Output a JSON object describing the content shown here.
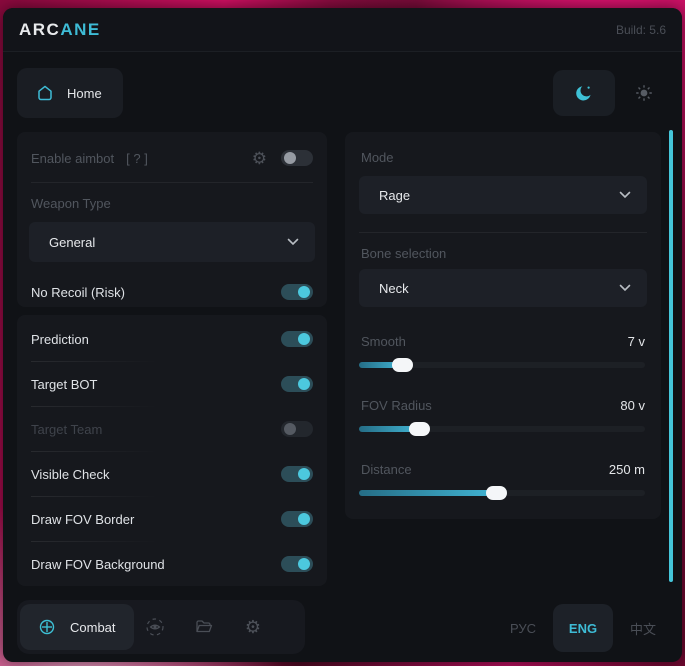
{
  "titlebar": {
    "brand_primary": "ARC",
    "brand_accent": "ANE",
    "build": "Build: 5.6"
  },
  "nav": {
    "home_label": "Home"
  },
  "left_panel": {
    "aimbot": {
      "label": "Enable aimbot",
      "hint": "[ ? ]",
      "enabled": false
    },
    "weapon_type": {
      "label": "Weapon Type",
      "value": "General"
    },
    "no_recoil": {
      "label": "No Recoil (Risk)",
      "enabled": true
    },
    "toggles": [
      {
        "label": "Prediction",
        "state": "on"
      },
      {
        "label": "Target BOT",
        "state": "on"
      },
      {
        "label": "Target Team",
        "state": "disabled"
      },
      {
        "label": "Visible Check",
        "state": "on"
      },
      {
        "label": "Draw FOV Border",
        "state": "on"
      },
      {
        "label": "Draw FOV Background",
        "state": "on"
      }
    ]
  },
  "right_panel": {
    "mode": {
      "label": "Mode",
      "value": "Rage"
    },
    "bone": {
      "label": "Bone selection",
      "value": "Neck"
    },
    "sliders": [
      {
        "label": "Smooth",
        "value": "7 v",
        "percent": 15
      },
      {
        "label": "FOV Radius",
        "value": "80 v",
        "percent": 21
      },
      {
        "label": "Distance",
        "value": "250 m",
        "percent": 48
      }
    ]
  },
  "bottom_bar": {
    "combat_label": "Combat",
    "languages": [
      {
        "label": "РУС",
        "active": false
      },
      {
        "label": "ENG",
        "active": true
      },
      {
        "label": "中文",
        "active": false
      }
    ]
  },
  "colors": {
    "accent": "#3ebcd6",
    "toggle_on": "#4cc8de",
    "scrollbar": "#45c6da"
  }
}
